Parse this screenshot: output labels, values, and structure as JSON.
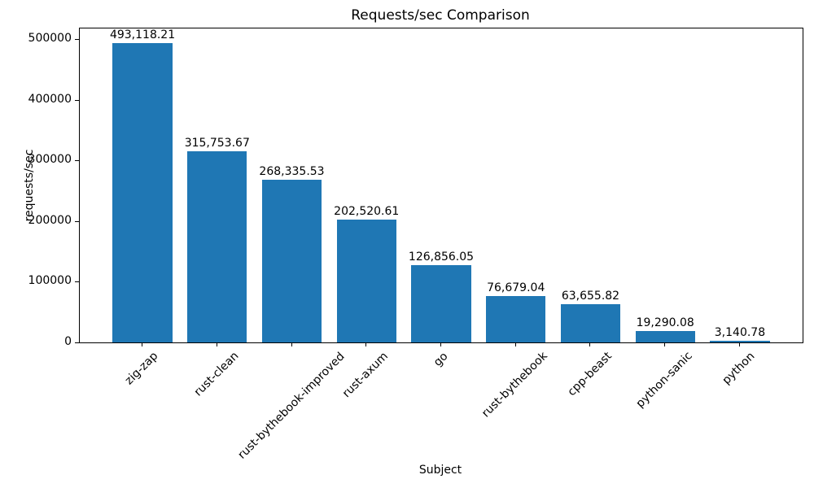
{
  "chart_data": {
    "type": "bar",
    "title": "Requests/sec Comparison",
    "xlabel": "Subject",
    "ylabel": "requests/sec",
    "categories": [
      "zig-zap",
      "rust-clean",
      "rust-bythebook-improved",
      "rust-axum",
      "go",
      "rust-bythebook",
      "cpp-beast",
      "python-sanic",
      "python"
    ],
    "values": [
      493118.21,
      315753.67,
      268335.53,
      202520.61,
      126856.05,
      76679.04,
      63655.82,
      19290.08,
      3140.78
    ],
    "value_labels": [
      "493,118.21",
      "315,753.67",
      "268,335.53",
      "202,520.61",
      "126,856.05",
      "76,679.04",
      "63,655.82",
      "19,290.08",
      "3,140.78"
    ],
    "yticks": [
      0,
      100000,
      200000,
      300000,
      400000,
      500000
    ],
    "ytick_labels": [
      "0",
      "100000",
      "200000",
      "300000",
      "400000",
      "500000"
    ],
    "ylim": [
      0,
      517774
    ],
    "xlim": [
      -0.84,
      8.84
    ],
    "bar_width_ratio": 0.8,
    "bar_color": "#1f77b4",
    "grid": false,
    "legend": "none",
    "x_tick_rotation_deg": 45
  }
}
